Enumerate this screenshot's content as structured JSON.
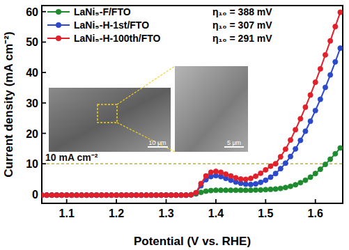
{
  "chart_data": {
    "type": "line",
    "x_label": "Potential (V vs. RHE)",
    "y_label": "Current density (mA cm⁻²)",
    "xlim": [
      1.05,
      1.655
    ],
    "ylim": [
      -3,
      62
    ],
    "xticks": [
      1.1,
      1.2,
      1.3,
      1.4,
      1.5,
      1.6
    ],
    "yticks": [
      0,
      10,
      20,
      30,
      40,
      50,
      60
    ],
    "legend": "top-left",
    "marker": "circle",
    "annotations": [
      "η₁₀ = 388 mV",
      "η₁₀ = 307 mV",
      "η₁₀ = 291 mV"
    ],
    "reference_line": {
      "value": 10,
      "label": "10 mA cm⁻²"
    },
    "inset_labels": [
      "10 μm",
      "5 μm"
    ],
    "x": [
      1.05,
      1.06,
      1.07,
      1.08,
      1.09,
      1.1,
      1.11,
      1.12,
      1.13,
      1.14,
      1.15,
      1.16,
      1.17,
      1.18,
      1.19,
      1.2,
      1.21,
      1.22,
      1.23,
      1.24,
      1.25,
      1.26,
      1.27,
      1.28,
      1.29,
      1.3,
      1.31,
      1.32,
      1.33,
      1.34,
      1.35,
      1.36,
      1.37,
      1.38,
      1.39,
      1.4,
      1.41,
      1.42,
      1.43,
      1.44,
      1.45,
      1.46,
      1.47,
      1.48,
      1.49,
      1.5,
      1.51,
      1.52,
      1.53,
      1.54,
      1.55,
      1.56,
      1.57,
      1.58,
      1.59,
      1.6,
      1.61,
      1.62,
      1.63,
      1.64,
      1.65
    ],
    "series": [
      {
        "name": "LaNi₅-F/FTO",
        "color": "#1e8c2e",
        "values": [
          -0.3,
          -0.3,
          -0.3,
          -0.3,
          -0.3,
          -0.3,
          -0.3,
          -0.3,
          -0.3,
          -0.3,
          -0.3,
          -0.3,
          -0.3,
          -0.3,
          -0.3,
          -0.3,
          -0.3,
          -0.3,
          -0.3,
          -0.3,
          -0.3,
          -0.3,
          -0.3,
          -0.3,
          -0.3,
          -0.3,
          -0.3,
          -0.3,
          -0.3,
          -0.3,
          -0.2,
          0.1,
          0.6,
          1.0,
          1.2,
          1.3,
          1.3,
          1.3,
          1.3,
          1.3,
          1.3,
          1.3,
          1.3,
          1.4,
          1.4,
          1.5,
          1.6,
          1.7,
          1.9,
          2.2,
          2.6,
          3.1,
          3.8,
          4.6,
          5.6,
          6.8,
          8.2,
          9.8,
          11.5,
          13.3,
          15.2
        ]
      },
      {
        "name": "LaNi₅-H-1st/FTO",
        "color": "#2b49c9",
        "values": [
          -0.3,
          -0.3,
          -0.3,
          -0.3,
          -0.3,
          -0.3,
          -0.3,
          -0.3,
          -0.3,
          -0.3,
          -0.3,
          -0.3,
          -0.3,
          -0.3,
          -0.3,
          -0.3,
          -0.3,
          -0.3,
          -0.3,
          -0.3,
          -0.3,
          -0.3,
          -0.3,
          -0.3,
          -0.3,
          -0.3,
          -0.3,
          -0.3,
          -0.3,
          -0.3,
          -0.2,
          0.4,
          2.8,
          4.8,
          5.8,
          6.1,
          5.8,
          5.2,
          4.6,
          4.0,
          3.6,
          3.3,
          3.2,
          3.4,
          3.9,
          4.6,
          5.6,
          6.8,
          8.4,
          10.2,
          12.4,
          14.9,
          17.7,
          20.7,
          24.0,
          27.5,
          31.2,
          35.1,
          39.2,
          43.5,
          48.0
        ]
      },
      {
        "name": "LaNi₅-H-100th/FTO",
        "color": "#e0202a",
        "values": [
          -0.3,
          -0.3,
          -0.3,
          -0.3,
          -0.3,
          -0.3,
          -0.3,
          -0.3,
          -0.3,
          -0.3,
          -0.3,
          -0.3,
          -0.3,
          -0.3,
          -0.3,
          -0.3,
          -0.3,
          -0.3,
          -0.3,
          -0.3,
          -0.3,
          -0.3,
          -0.3,
          -0.3,
          -0.3,
          -0.3,
          -0.3,
          -0.3,
          -0.3,
          -0.3,
          -0.2,
          0.5,
          3.5,
          6.0,
          7.2,
          7.5,
          7.2,
          6.6,
          6.0,
          5.4,
          5.0,
          4.9,
          5.2,
          5.9,
          6.9,
          8.0,
          9.2,
          10.0,
          12.3,
          14.8,
          17.8,
          21.2,
          24.8,
          28.6,
          32.6,
          36.8,
          41.2,
          45.8,
          50.4,
          55.1,
          59.8
        ]
      }
    ]
  }
}
